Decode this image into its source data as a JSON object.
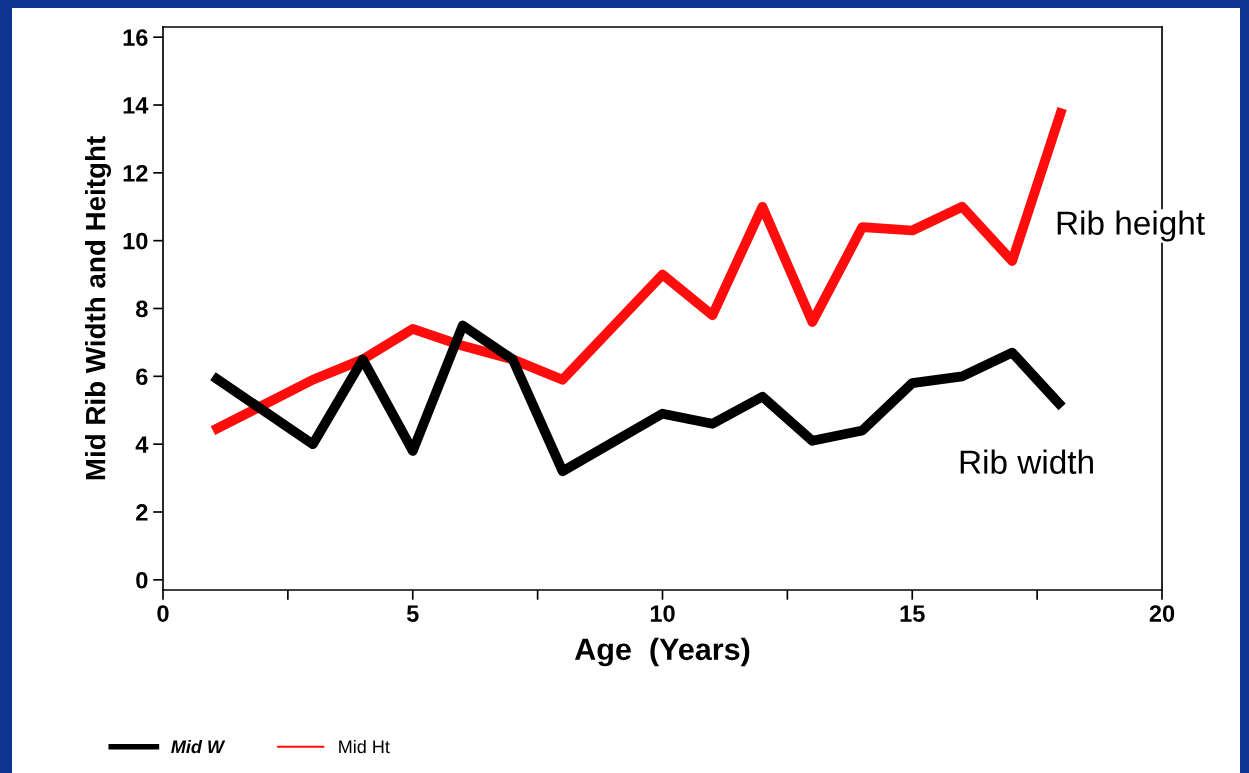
{
  "chart_data": {
    "type": "line",
    "xlabel": "Age  (Years)",
    "ylabel": "Mid Rib Width and Heitght",
    "series": [
      {
        "name": "Mid W",
        "color": "#000000",
        "x": [
          1,
          3,
          4,
          5,
          6,
          7,
          8,
          10,
          11,
          12,
          13,
          14,
          15,
          16,
          17,
          18
        ],
        "values": [
          6.0,
          4.0,
          6.5,
          3.8,
          7.5,
          6.5,
          3.2,
          4.9,
          4.6,
          5.4,
          4.1,
          4.4,
          5.8,
          6.0,
          6.7,
          5.1
        ]
      },
      {
        "name": "Mid Ht",
        "color": "#ff0d0d",
        "x": [
          1,
          3,
          4,
          5,
          6,
          7,
          8,
          10,
          11,
          12,
          13,
          14,
          15,
          16,
          17,
          18
        ],
        "values": [
          4.4,
          5.9,
          6.5,
          7.4,
          6.9,
          6.5,
          5.9,
          9.0,
          7.8,
          11.0,
          7.6,
          10.4,
          10.3,
          11.0,
          9.4,
          13.9
        ]
      }
    ],
    "annotations": [
      "Rib height",
      "Rib width"
    ],
    "xlim": [
      0,
      20
    ],
    "xticks": [
      0,
      {
        "value": 2.5,
        "label": null
      },
      5,
      {
        "value": 7.5,
        "label": null
      },
      10,
      {
        "value": 12.5,
        "label": null
      },
      15,
      {
        "value": 17.5,
        "label": null
      },
      20
    ],
    "ylim": [
      -0.3,
      16.3
    ],
    "yticks": [
      0,
      2,
      4,
      6,
      8,
      10,
      12,
      14,
      16
    ],
    "grid": false,
    "legend": "bottom",
    "marker": "none",
    "line_style": "solid"
  }
}
